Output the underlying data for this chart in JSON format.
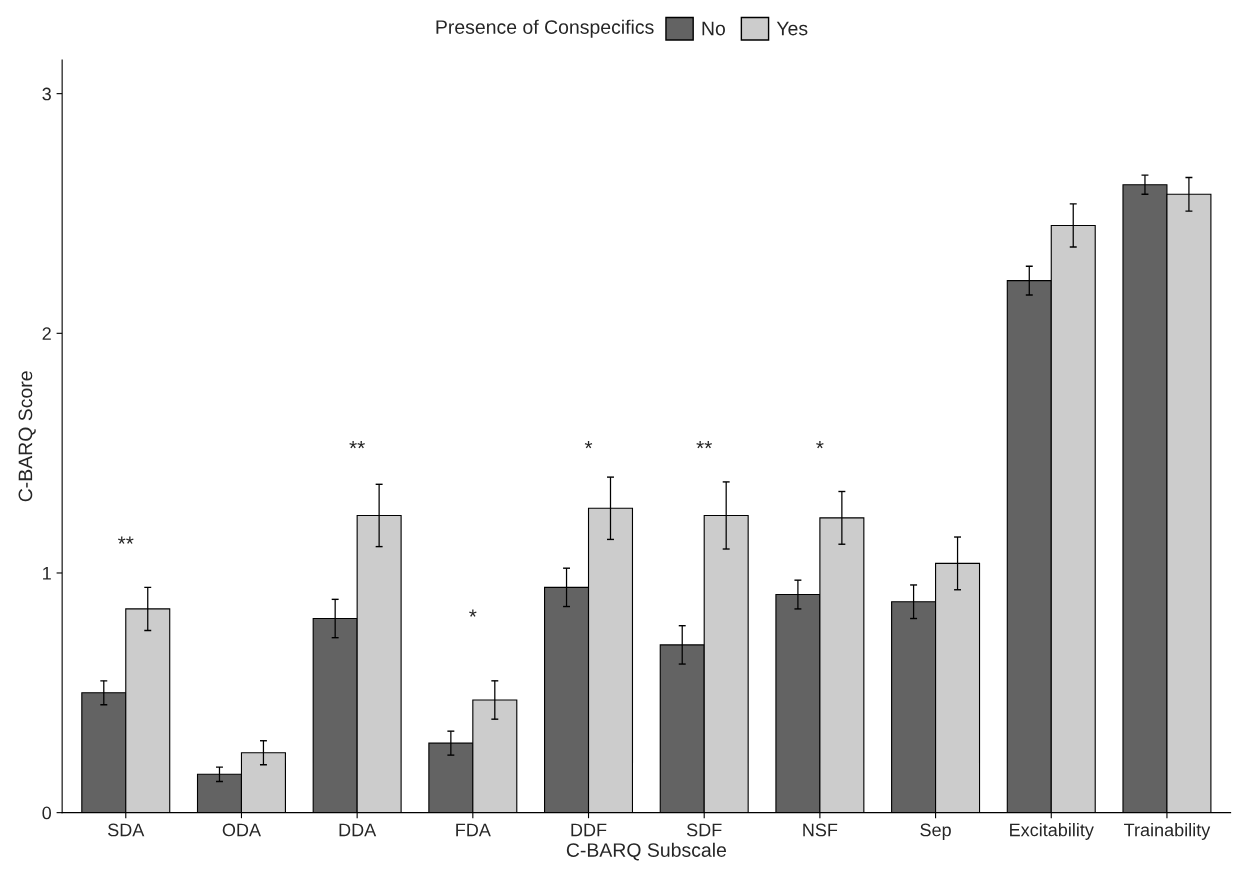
{
  "chart_data": {
    "type": "bar",
    "xlabel": "C-BARQ Subscale",
    "ylabel": "C-BARQ Score",
    "legend_title": "Presence of Conspecifics",
    "categories": [
      "SDA",
      "ODA",
      "DDA",
      "FDA",
      "DDF",
      "SDF",
      "NSF",
      "Sep",
      "Excitability",
      "Trainability"
    ],
    "series": [
      {
        "name": "No",
        "color": "#636363",
        "values": [
          0.5,
          0.16,
          0.81,
          0.29,
          0.94,
          0.7,
          0.91,
          0.88,
          2.22,
          2.62
        ],
        "errors": [
          0.05,
          0.03,
          0.08,
          0.05,
          0.08,
          0.08,
          0.06,
          0.07,
          0.06,
          0.04
        ]
      },
      {
        "name": "Yes",
        "color": "#cccccc",
        "values": [
          0.85,
          0.25,
          1.24,
          0.47,
          1.27,
          1.24,
          1.23,
          1.04,
          2.45,
          2.58
        ],
        "errors": [
          0.09,
          0.05,
          0.13,
          0.08,
          0.13,
          0.14,
          0.11,
          0.11,
          0.09,
          0.07
        ]
      }
    ],
    "ylim": [
      0,
      3.14
    ],
    "yticks": [
      0,
      1,
      2,
      3
    ],
    "grid": false,
    "legend": "top",
    "annotations": [
      "**",
      "**",
      "*",
      "*",
      "**",
      "*"
    ]
  }
}
